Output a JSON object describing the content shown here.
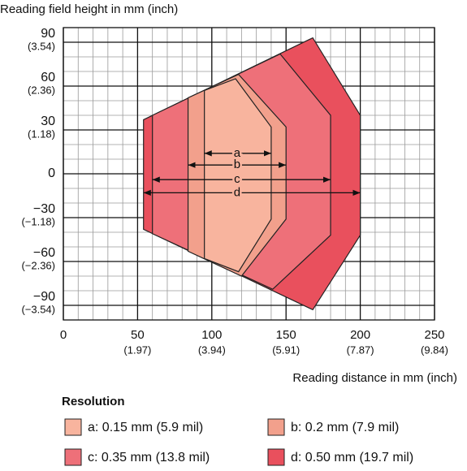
{
  "chart_data": {
    "type": "reading-field",
    "title": "Reading field height in mm (inch)",
    "x_label": "Reading distance in mm (inch)",
    "legend_title": "Resolution",
    "xlim": [
      0,
      250
    ],
    "ylim": [
      -100,
      100
    ],
    "minor_grid_step": 10,
    "grid": true,
    "xticks": [
      0,
      {
        "value": 50,
        "label": "50",
        "sublabel": "(1.97)"
      },
      {
        "value": 100,
        "label": "100",
        "sublabel": "(3.94)"
      },
      {
        "value": 150,
        "label": "150",
        "sublabel": "(5.91)"
      },
      {
        "value": 200,
        "label": "200",
        "sublabel": "(7.87)"
      },
      {
        "value": 250,
        "label": "250",
        "sublabel": "(9.84)"
      }
    ],
    "yticks": [
      {
        "value": 90,
        "label": "90",
        "sublabel": "(3.54)"
      },
      {
        "value": 60,
        "label": "60",
        "sublabel": "(2.36)"
      },
      {
        "value": 30,
        "label": "30",
        "sublabel": "(1.18)"
      },
      0,
      {
        "value": -30,
        "label": "−30",
        "sublabel": "(−1.18)"
      },
      {
        "value": -60,
        "label": "−60",
        "sublabel": "(−2.36)"
      },
      {
        "value": -90,
        "label": "−90",
        "sublabel": "(−3.54)"
      }
    ],
    "series": [
      {
        "name": "a: 0.15 mm (5.9 mil)",
        "label": "a",
        "color": "#f8b49e",
        "x": [
          95,
          116,
          140,
          140,
          118,
          95
        ],
        "y": [
          57,
          65,
          32,
          -31,
          -67,
          -58
        ],
        "range": [
          95,
          140
        ],
        "arrow_y": 14
      },
      {
        "name": "b: 0.2 mm (7.9 mil)",
        "label": "b",
        "color": "#f2a08c",
        "x": [
          84,
          118,
          150,
          150,
          120,
          84
        ],
        "y": [
          52,
          68,
          32,
          -31,
          -70,
          -53
        ],
        "range": [
          84,
          150
        ],
        "arrow_y": 6
      },
      {
        "name": "c: 0.35 mm (13.8 mil)",
        "label": "c",
        "color": "#ee7079",
        "x": [
          60,
          146,
          180,
          180,
          141,
          60
        ],
        "y": [
          40,
          82,
          40,
          -42,
          -79,
          -41
        ],
        "range": [
          60,
          180
        ],
        "arrow_y": -4
      },
      {
        "name": "d: 0.50 mm (19.7 mil)",
        "label": "d",
        "color": "#e9505d",
        "x": [
          54,
          168,
          200,
          200,
          168,
          54
        ],
        "y": [
          37,
          93,
          40,
          -42,
          -93,
          -38
        ],
        "range": [
          54,
          200
        ],
        "arrow_y": -13
      }
    ]
  }
}
